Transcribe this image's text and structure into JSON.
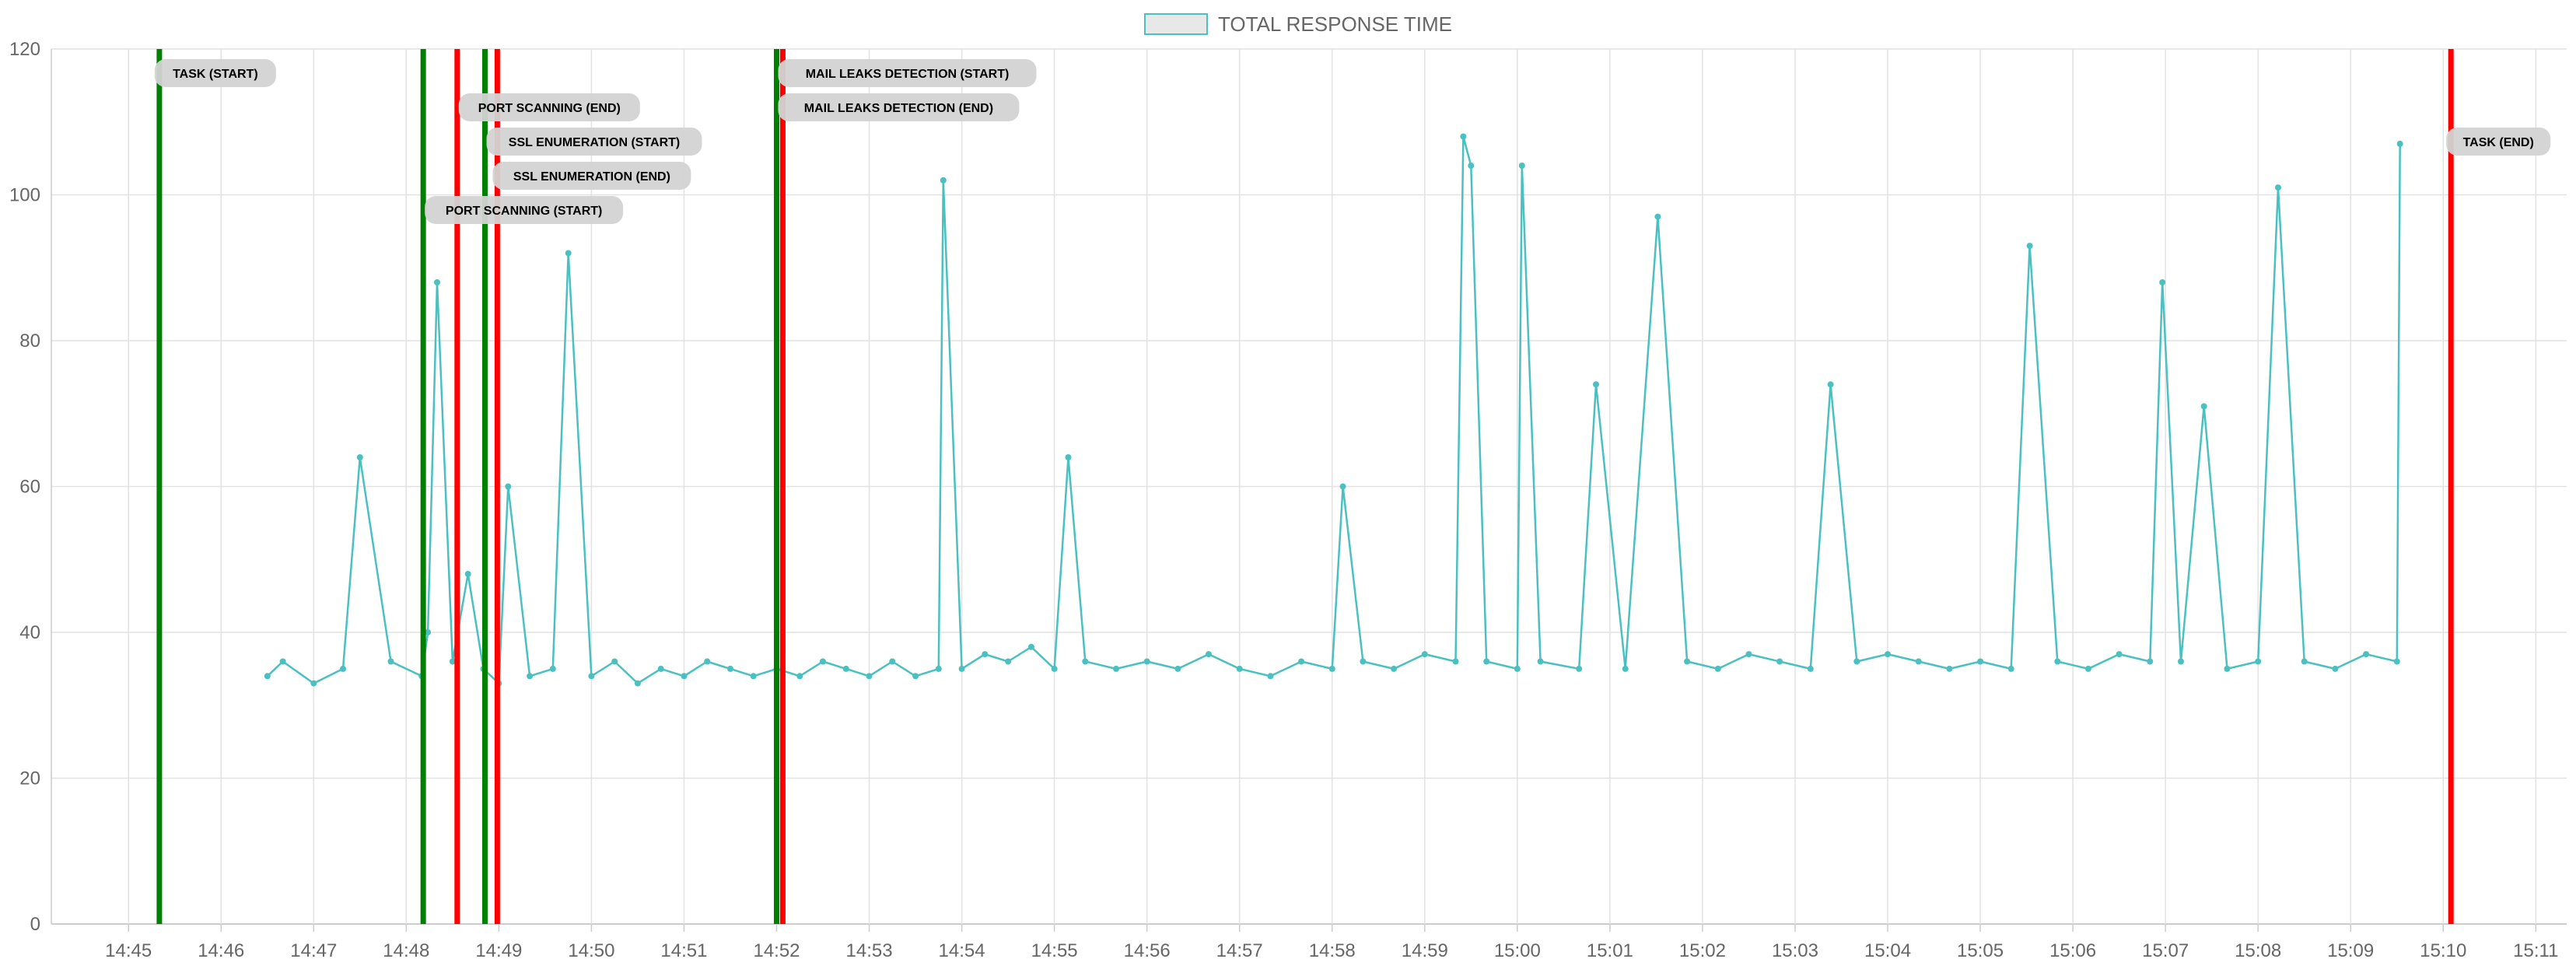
{
  "chart_data": {
    "type": "line",
    "title": "",
    "xlabel": "",
    "ylabel": "",
    "legend": {
      "position": "top-center",
      "entries": [
        {
          "name": "TOTAL RESPONSE TIME",
          "color": "#4bc0c0",
          "fill": "#e8e8e8"
        }
      ]
    },
    "grid": true,
    "xlim": [
      "14:44:10",
      "15:11:20"
    ],
    "ylim": [
      0,
      120
    ],
    "x_ticks": [
      "14:45",
      "14:46",
      "14:47",
      "14:48",
      "14:49",
      "14:50",
      "14:51",
      "14:52",
      "14:53",
      "14:54",
      "14:55",
      "14:56",
      "14:57",
      "14:58",
      "14:59",
      "15:00",
      "15:01",
      "15:02",
      "15:03",
      "15:04",
      "15:05",
      "15:06",
      "15:07",
      "15:08",
      "15:09",
      "15:10",
      "15:11"
    ],
    "y_ticks": [
      0,
      20,
      40,
      60,
      80,
      100,
      120
    ],
    "series": [
      {
        "name": "TOTAL RESPONSE TIME",
        "color": "#4bc0c0",
        "x": [
          "14:46:30",
          "14:46:40",
          "14:47:00",
          "14:47:19",
          "14:47:30",
          "14:47:50",
          "14:48:10",
          "14:48:14",
          "14:48:20",
          "14:48:30",
          "14:48:40",
          "14:48:50",
          "14:49:00",
          "14:49:06",
          "14:49:20",
          "14:49:35",
          "14:49:45",
          "14:50:00",
          "14:50:15",
          "14:50:30",
          "14:50:45",
          "14:51:00",
          "14:51:15",
          "14:51:30",
          "14:51:45",
          "14:52:00",
          "14:52:15",
          "14:52:30",
          "14:52:45",
          "14:53:00",
          "14:53:15",
          "14:53:30",
          "14:53:45",
          "14:53:48",
          "14:54:00",
          "14:54:15",
          "14:54:30",
          "14:54:45",
          "14:55:00",
          "14:55:09",
          "14:55:20",
          "14:55:40",
          "14:56:00",
          "14:56:20",
          "14:56:40",
          "14:57:00",
          "14:57:20",
          "14:57:40",
          "14:58:00",
          "14:58:07",
          "14:58:20",
          "14:58:40",
          "14:59:00",
          "14:59:20",
          "14:59:25",
          "14:59:30",
          "14:59:40",
          "15:00:00",
          "15:00:03",
          "15:00:15",
          "15:00:40",
          "15:00:51",
          "15:01:10",
          "15:01:31",
          "15:01:50",
          "15:02:10",
          "15:02:30",
          "15:02:50",
          "15:03:10",
          "15:03:23",
          "15:03:40",
          "15:04:00",
          "15:04:20",
          "15:04:40",
          "15:05:00",
          "15:05:20",
          "15:05:32",
          "15:05:50",
          "15:06:10",
          "15:06:30",
          "15:06:50",
          "15:06:58",
          "15:07:10",
          "15:07:25",
          "15:07:40",
          "15:08:00",
          "15:08:13",
          "15:08:30",
          "15:08:50",
          "15:09:10",
          "15:09:30",
          "15:09:32"
        ],
        "values": [
          34,
          36,
          33,
          35,
          64,
          36,
          34,
          40,
          88,
          36,
          48,
          35,
          33,
          60,
          34,
          35,
          92,
          34,
          36,
          33,
          35,
          34,
          36,
          35,
          34,
          35,
          34,
          36,
          35,
          34,
          36,
          34,
          35,
          102,
          35,
          37,
          36,
          38,
          35,
          64,
          36,
          35,
          36,
          35,
          37,
          35,
          34,
          36,
          35,
          60,
          36,
          35,
          37,
          36,
          108,
          104,
          36,
          35,
          104,
          36,
          35,
          74,
          35,
          97,
          36,
          35,
          37,
          36,
          35,
          74,
          36,
          37,
          36,
          35,
          36,
          35,
          93,
          36,
          35,
          37,
          36,
          88,
          36,
          71,
          35,
          36,
          101,
          36,
          35,
          37,
          36,
          107
        ]
      }
    ],
    "annotations": [
      {
        "label": "TASK (START)",
        "time": "14:45:20",
        "color": "#008000"
      },
      {
        "label": "PORT SCANNING (END)",
        "time": "14:48:33",
        "color": "#ff0000"
      },
      {
        "label": "SSL ENUMERATION (START)",
        "time": "14:48:51",
        "color": "#008000"
      },
      {
        "label": "SSL ENUMERATION (END)",
        "time": "14:48:59",
        "color": "#ff0000"
      },
      {
        "label": "PORT SCANNING (START)",
        "time": "14:48:11",
        "color": "#008000"
      },
      {
        "label": "MAIL LEAKS DETECTION (START)",
        "time": "14:52:00",
        "color": "#008000"
      },
      {
        "label": "MAIL LEAKS DETECTION (END)",
        "time": "14:52:04",
        "color": "#ff0000"
      },
      {
        "label": "TASK (END)",
        "time": "15:10:05",
        "color": "#ff0000"
      }
    ]
  }
}
